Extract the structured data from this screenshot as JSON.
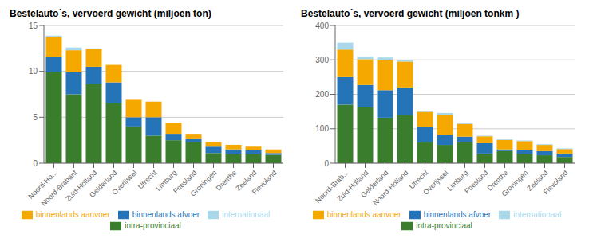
{
  "chart_data": [
    {
      "type": "bar",
      "title": "Bestelauto´s, vervoerd gewicht (miljoen ton)",
      "categories": [
        "Noord-Ho...",
        "Noord-Brabant",
        "Zuid-Holland",
        "Gelderland",
        "Overijssel",
        "Utrecht",
        "Limburg",
        "Friesland",
        "Groningen",
        "Drenthe",
        "Zeeland",
        "Flevoland"
      ],
      "series": [
        {
          "name": "intra-provinciaal",
          "color": "#3a7d2c",
          "values": [
            9.9,
            7.5,
            8.6,
            6.5,
            4.0,
            3.0,
            2.5,
            2.3,
            1.1,
            1.0,
            1.0,
            0.9
          ]
        },
        {
          "name": "binnenlands afvoer",
          "color": "#2674b8",
          "values": [
            1.7,
            2.4,
            1.9,
            2.3,
            1.0,
            2.0,
            0.7,
            0.4,
            0.7,
            0.5,
            0.4,
            0.2
          ]
        },
        {
          "name": "binnenlands aanvoer",
          "color": "#f5a800",
          "values": [
            2.2,
            2.4,
            1.9,
            1.9,
            1.9,
            1.7,
            1.2,
            0.5,
            0.5,
            0.5,
            0.4,
            0.4
          ]
        },
        {
          "name": "internationaal",
          "color": "#a8d8ea",
          "values": [
            0.1,
            0.3,
            0.1,
            0.0,
            0.0,
            0.0,
            0.0,
            0.0,
            0.0,
            0.0,
            0.0,
            0.0
          ]
        }
      ],
      "ylim": [
        0,
        15
      ],
      "yticks": [
        0,
        5,
        10,
        15
      ],
      "grid": true,
      "stacked": true,
      "legend": "bottom"
    },
    {
      "type": "bar",
      "title": "Bestelauto´s, vervoerd gewicht (miljoen tonkm )",
      "categories": [
        "Noord-Brab...",
        "Zuid-Holland",
        "Gelderland",
        "Noord-Holland",
        "Utrecht",
        "Overijssel",
        "Limburg",
        "Friesland",
        "Drenthe",
        "Groningen",
        "Zeeland",
        "Flevoland"
      ],
      "series": [
        {
          "name": "intra-provinciaal",
          "color": "#3a7d2c",
          "values": [
            170,
            162,
            132,
            140,
            60,
            53,
            62,
            28,
            35,
            27,
            23,
            18
          ]
        },
        {
          "name": "binnenlands afvoer",
          "color": "#2674b8",
          "values": [
            80,
            65,
            80,
            80,
            45,
            30,
            15,
            30,
            5,
            10,
            12,
            10
          ]
        },
        {
          "name": "binnenlands aanvoer",
          "color": "#f5a800",
          "values": [
            80,
            75,
            87,
            75,
            44,
            58,
            37,
            20,
            27,
            27,
            18,
            13
          ]
        },
        {
          "name": "internationaal",
          "color": "#a8d8ea",
          "values": [
            20,
            8,
            8,
            5,
            3,
            5,
            2,
            2,
            2,
            2,
            2,
            2
          ]
        }
      ],
      "ylim": [
        0,
        400
      ],
      "yticks": [
        0,
        100,
        200,
        300,
        400
      ],
      "grid": true,
      "stacked": true,
      "legend": "bottom"
    }
  ]
}
